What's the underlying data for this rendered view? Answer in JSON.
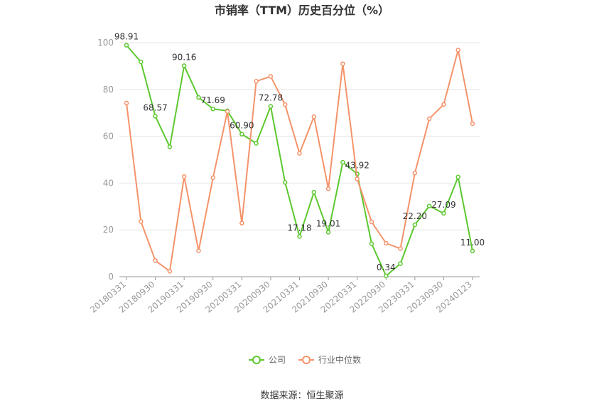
{
  "chart_data": {
    "type": "line",
    "title": "市销率（TTM）历史百分位（%）",
    "source_text": "数据来源：恒生聚源",
    "x_tick_labels": [
      "20180331",
      "20180930",
      "20190331",
      "20190930",
      "20200331",
      "20200930",
      "20210331",
      "20210930",
      "20220331",
      "20220930",
      "20230331",
      "20230930",
      "20240123"
    ],
    "x": [
      "20180331",
      "20180630",
      "20180930",
      "20181231",
      "20190331",
      "20190630",
      "20190930",
      "20191231",
      "20200331",
      "20200630",
      "20200930",
      "20201231",
      "20210331",
      "20210630",
      "20210930",
      "20211231",
      "20220331",
      "20220630",
      "20220930",
      "20221231",
      "20230331",
      "20230630",
      "20230930",
      "20231231",
      "20240123"
    ],
    "ylim": [
      0,
      100
    ],
    "yticks": [
      0,
      20,
      40,
      60,
      80,
      100
    ],
    "grid": true,
    "legend_position": "bottom",
    "series": [
      {
        "name": "公司",
        "color": "#5cc82f",
        "values": [
          98.91,
          91.8,
          68.57,
          55.5,
          90.16,
          76.6,
          71.69,
          70.9,
          60.9,
          57.0,
          72.78,
          40.3,
          17.18,
          36.1,
          19.01,
          48.9,
          43.92,
          14.1,
          0.34,
          5.6,
          22.2,
          30.2,
          27.09,
          42.6,
          11.0
        ],
        "point_labels": [
          "98.91",
          "",
          "68.57",
          "",
          "90.16",
          "",
          "71.69",
          "",
          "60.90",
          "",
          "72.78",
          "",
          "17.18",
          "",
          "19.01",
          "",
          "43.92",
          "",
          "0.34",
          "",
          "22.20",
          "",
          "27.09",
          "",
          "11.00"
        ]
      },
      {
        "name": "行业中位数",
        "color": "#f4936a",
        "values": [
          74.2,
          23.6,
          6.9,
          2.3,
          42.8,
          11.1,
          42.3,
          70.6,
          22.9,
          83.5,
          85.6,
          73.5,
          52.7,
          68.4,
          37.6,
          91.0,
          41.8,
          23.4,
          14.3,
          12.0,
          44.3,
          67.5,
          73.6,
          96.9,
          65.4
        ]
      }
    ]
  }
}
